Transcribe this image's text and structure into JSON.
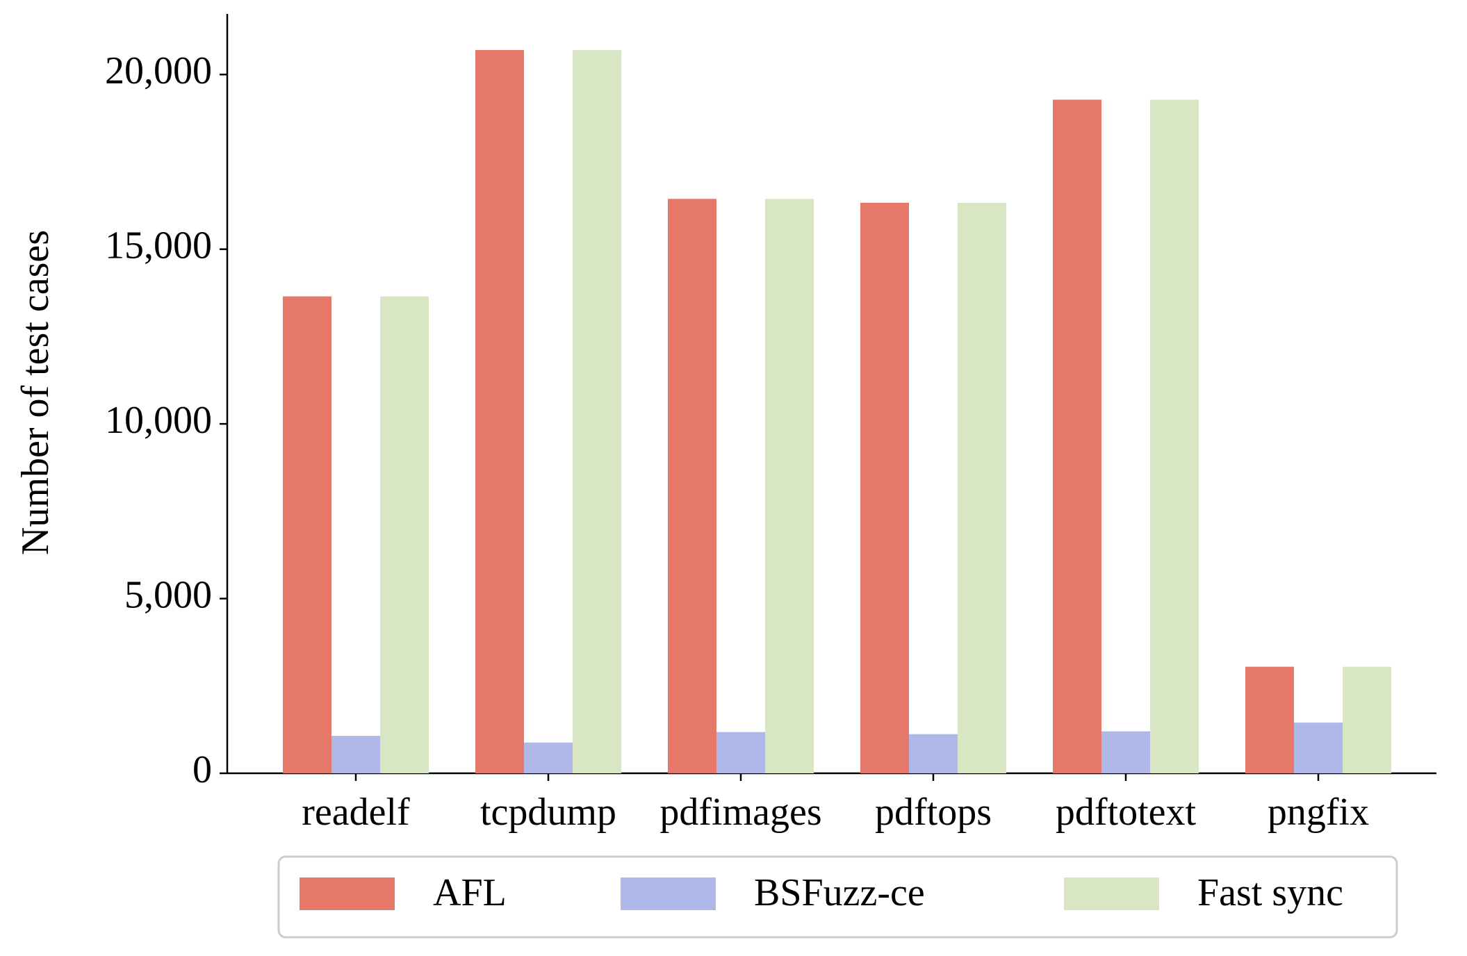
{
  "chart_data": {
    "type": "bar",
    "y_label": "Number of test cases",
    "categories": [
      "readelf",
      "tcpdump",
      "pdfimages",
      "pdftops",
      "pdftotext",
      "pngfix"
    ],
    "series": [
      {
        "name": "AFL",
        "color": "#e57868",
        "values": [
          13650,
          20700,
          16440,
          16330,
          19280,
          3050
        ]
      },
      {
        "name": "BSFuzz-ce",
        "color": "#b0b8ea",
        "values": [
          1070,
          880,
          1180,
          1120,
          1200,
          1450
        ]
      },
      {
        "name": "Fast sync",
        "color": "#d8e6c4",
        "values": [
          13650,
          20700,
          16440,
          16330,
          19280,
          3050
        ]
      }
    ],
    "ylim": [
      0,
      21735
    ],
    "yticks": [
      0,
      {
        "value": 5000,
        "label": "5,000"
      },
      {
        "value": 10000,
        "label": "10,000"
      },
      {
        "value": 15000,
        "label": "15,000"
      },
      {
        "value": 20000,
        "label": "20,000"
      }
    ],
    "grid": false,
    "legend_position": "bottom"
  }
}
